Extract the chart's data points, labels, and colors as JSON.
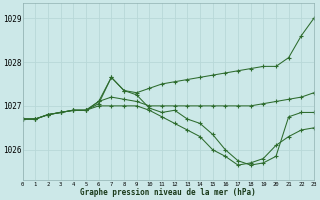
{
  "title": "Graphe pression niveau de la mer (hPa)",
  "bg_color": "#cce8e8",
  "grid_color": "#b8d8d8",
  "line_color": "#2d6b2d",
  "xlim": [
    0,
    23
  ],
  "ylim": [
    1025.3,
    1029.35
  ],
  "yticks": [
    1026,
    1027,
    1028,
    1029
  ],
  "xticks": [
    0,
    1,
    2,
    3,
    4,
    5,
    6,
    7,
    8,
    9,
    10,
    11,
    12,
    13,
    14,
    15,
    16,
    17,
    18,
    19,
    20,
    21,
    22,
    23
  ],
  "series": [
    {
      "x": [
        0,
        1,
        2,
        3,
        4,
        5,
        6,
        7,
        8,
        9,
        10,
        11,
        12,
        13,
        14,
        15,
        16,
        17,
        18,
        19,
        20,
        21,
        22,
        23
      ],
      "y": [
        1026.7,
        1026.7,
        1026.8,
        1026.85,
        1026.9,
        1026.9,
        1027.05,
        1027.65,
        1027.35,
        1027.3,
        1027.4,
        1027.5,
        1027.55,
        1027.6,
        1027.65,
        1027.7,
        1027.75,
        1027.8,
        1027.85,
        1027.9,
        1027.9,
        1028.1,
        1028.6,
        1029.0
      ]
    },
    {
      "x": [
        0,
        1,
        2,
        3,
        4,
        5,
        6,
        7,
        8,
        9,
        10,
        11,
        12,
        13,
        14,
        15,
        16,
        17,
        18,
        19,
        20,
        21,
        22,
        23
      ],
      "y": [
        1026.7,
        1026.7,
        1026.8,
        1026.85,
        1026.9,
        1026.9,
        1027.1,
        1027.65,
        1027.35,
        1027.25,
        1026.95,
        1026.85,
        1026.9,
        1026.7,
        1026.6,
        1026.35,
        1026.0,
        1025.75,
        1025.65,
        1025.7,
        1025.85,
        1026.75,
        1026.85,
        1026.85
      ]
    },
    {
      "x": [
        0,
        1,
        2,
        3,
        4,
        5,
        6,
        7,
        8,
        9,
        10,
        11,
        12,
        13,
        14,
        15,
        16,
        17,
        18,
        19,
        20,
        21,
        22,
        23
      ],
      "y": [
        1026.7,
        1026.7,
        1026.8,
        1026.85,
        1026.9,
        1026.9,
        1027.1,
        1027.2,
        1027.15,
        1027.1,
        1027.0,
        1027.0,
        1027.0,
        1027.0,
        1027.0,
        1027.0,
        1027.0,
        1027.0,
        1027.0,
        1027.05,
        1027.1,
        1027.15,
        1027.2,
        1027.3
      ]
    },
    {
      "x": [
        0,
        1,
        2,
        3,
        4,
        5,
        6,
        7,
        8,
        9,
        10,
        11,
        12,
        13,
        14,
        15,
        16,
        17,
        18,
        19,
        20,
        21,
        22,
        23
      ],
      "y": [
        1026.7,
        1026.7,
        1026.8,
        1026.85,
        1026.9,
        1026.9,
        1027.0,
        1027.0,
        1027.0,
        1027.0,
        1026.9,
        1026.75,
        1026.6,
        1026.45,
        1026.3,
        1026.0,
        1025.85,
        1025.65,
        1025.7,
        1025.8,
        1026.1,
        1026.3,
        1026.45,
        1026.5
      ]
    }
  ],
  "marker_x": {
    "0": [
      0,
      1,
      3,
      6,
      7,
      9,
      20,
      21,
      22,
      23
    ],
    "1": [
      0,
      1,
      3,
      6,
      7,
      9,
      10,
      12,
      13,
      14,
      15,
      16,
      17,
      18,
      19,
      21,
      22,
      23
    ],
    "2": [
      0,
      1,
      3,
      6,
      7,
      9,
      10,
      20,
      21,
      22,
      23
    ],
    "3": [
      0,
      1,
      3,
      6,
      7,
      9,
      10,
      12,
      13,
      14,
      15,
      16,
      17,
      18,
      19,
      21,
      22,
      23
    ]
  }
}
